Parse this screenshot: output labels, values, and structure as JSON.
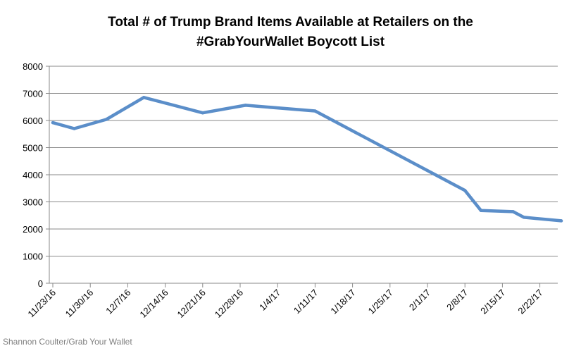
{
  "chart_data": {
    "type": "line",
    "title_lines": [
      "Total # of Trump Brand Items Available at Retailers on the",
      "#GrabYourWallet Boycott List"
    ],
    "xlabel": "",
    "ylabel": "",
    "ylim": [
      0,
      8000
    ],
    "yticks": [
      0,
      1000,
      2000,
      3000,
      4000,
      5000,
      6000,
      7000,
      8000
    ],
    "grid": true,
    "legend": "none",
    "x_tick_labels": [
      "11/23/16",
      "11/30/16",
      "12/7/16",
      "12/14/16",
      "12/21/16",
      "12/28/16",
      "1/4/17",
      "1/11/17",
      "1/18/17",
      "1/25/17",
      "2/1/17",
      "2/8/17",
      "2/15/17",
      "2/22/17"
    ],
    "series": [
      {
        "name": "Trump brand items",
        "color": "#5b8ec9",
        "points": [
          {
            "day": 0,
            "value": 5920
          },
          {
            "day": 4,
            "value": 5700
          },
          {
            "day": 10,
            "value": 6040
          },
          {
            "day": 17,
            "value": 6850
          },
          {
            "day": 28,
            "value": 6280
          },
          {
            "day": 36,
            "value": 6560
          },
          {
            "day": 49,
            "value": 6350
          },
          {
            "day": 77,
            "value": 3420
          },
          {
            "day": 80,
            "value": 2680
          },
          {
            "day": 86,
            "value": 2640
          },
          {
            "day": 88,
            "value": 2430
          },
          {
            "day": 95,
            "value": 2300
          }
        ]
      }
    ]
  },
  "credit": "Shannon Coulter/Grab Your Wallet"
}
